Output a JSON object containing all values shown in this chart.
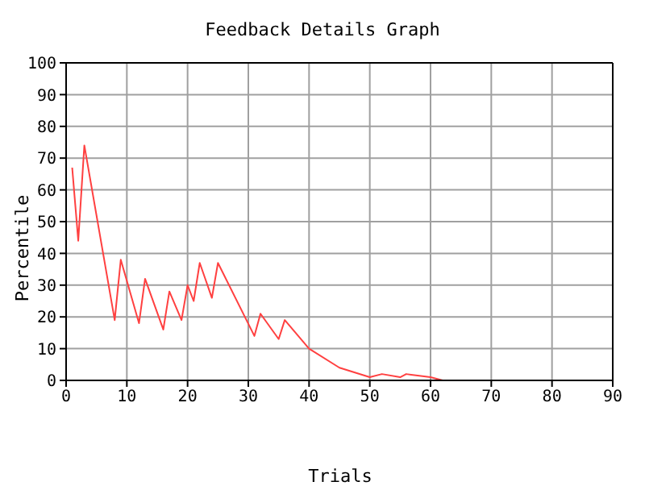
{
  "chart_data": {
    "type": "line",
    "title": "Feedback Details Graph",
    "xlabel": "Trials",
    "ylabel": "Percentile",
    "x": [
      1,
      2,
      3,
      8,
      9,
      12,
      13,
      16,
      17,
      19,
      20,
      21,
      22,
      24,
      25,
      31,
      32,
      35,
      36,
      40,
      45,
      50,
      52,
      55,
      56,
      60,
      62,
      90
    ],
    "series": [
      {
        "color": "#ff4040",
        "values": [
          67,
          44,
          74,
          19,
          38,
          18,
          32,
          16,
          28,
          19,
          30,
          25,
          37,
          26,
          37,
          14,
          21,
          13,
          19,
          10,
          4,
          1,
          2,
          1,
          2,
          1,
          0,
          0
        ]
      }
    ],
    "xlim": [
      0,
      90
    ],
    "xticks": [
      0,
      10,
      20,
      30,
      40,
      50,
      60,
      70,
      80,
      90
    ],
    "ylim": [
      0,
      100
    ],
    "yticks": [
      0,
      10,
      20,
      30,
      40,
      50,
      60,
      70,
      80,
      90,
      100
    ],
    "grid": true,
    "marker": "none",
    "line_style": "solid"
  }
}
